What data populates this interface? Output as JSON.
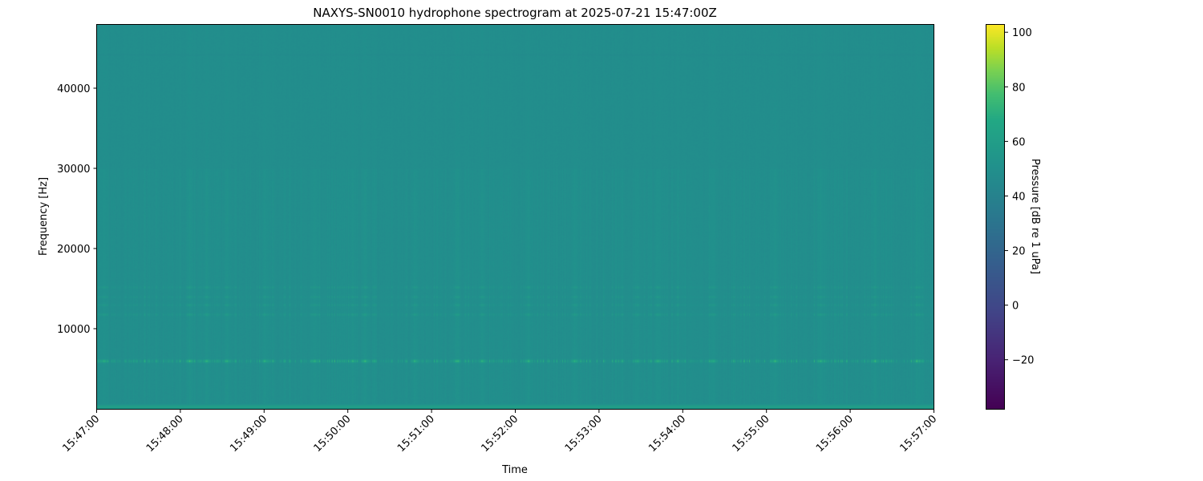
{
  "chart_data": {
    "type": "heatmap",
    "title": "NAXYS-SN0010 hydrophone spectrogram at 2025-07-21 15:47:00Z",
    "xlabel": "Time",
    "ylabel": "Frequency [Hz]",
    "colorbar_label": "Pressure [dB re 1 uPa]",
    "colormap": "viridis",
    "xlim": [
      "15:47:00",
      "15:57:00"
    ],
    "xticks": [
      "15:47:00",
      "15:48:00",
      "15:49:00",
      "15:50:00",
      "15:51:00",
      "15:52:00",
      "15:53:00",
      "15:54:00",
      "15:55:00",
      "15:56:00",
      "15:57:00"
    ],
    "ylim": [
      0,
      48000
    ],
    "yticks": [
      "10000",
      "20000",
      "30000",
      "40000"
    ],
    "clim": [
      -38,
      103
    ],
    "cticks": [
      "−20",
      "0",
      "20",
      "40",
      "60",
      "80",
      "100"
    ],
    "cticks_values": [
      -20,
      0,
      20,
      40,
      60,
      80,
      100
    ],
    "background_level_db": 48,
    "bands": [
      {
        "freq_hz": 300,
        "level_db": 62
      },
      {
        "freq_hz": 6000,
        "level_db": 72
      },
      {
        "freq_hz": 11800,
        "level_db": 58
      },
      {
        "freq_hz": 13000,
        "level_db": 57
      },
      {
        "freq_hz": 14000,
        "level_db": 57
      },
      {
        "freq_hz": 15200,
        "level_db": 57
      }
    ],
    "loud_events_minutes_after_start": [
      0.08,
      1.1,
      1.3,
      1.55,
      2.0,
      2.6,
      3.05,
      3.2,
      3.8,
      4.3,
      4.6,
      5.15,
      5.7,
      6.45,
      6.7,
      7.35,
      8.1,
      8.65,
      9.3,
      9.8
    ]
  }
}
